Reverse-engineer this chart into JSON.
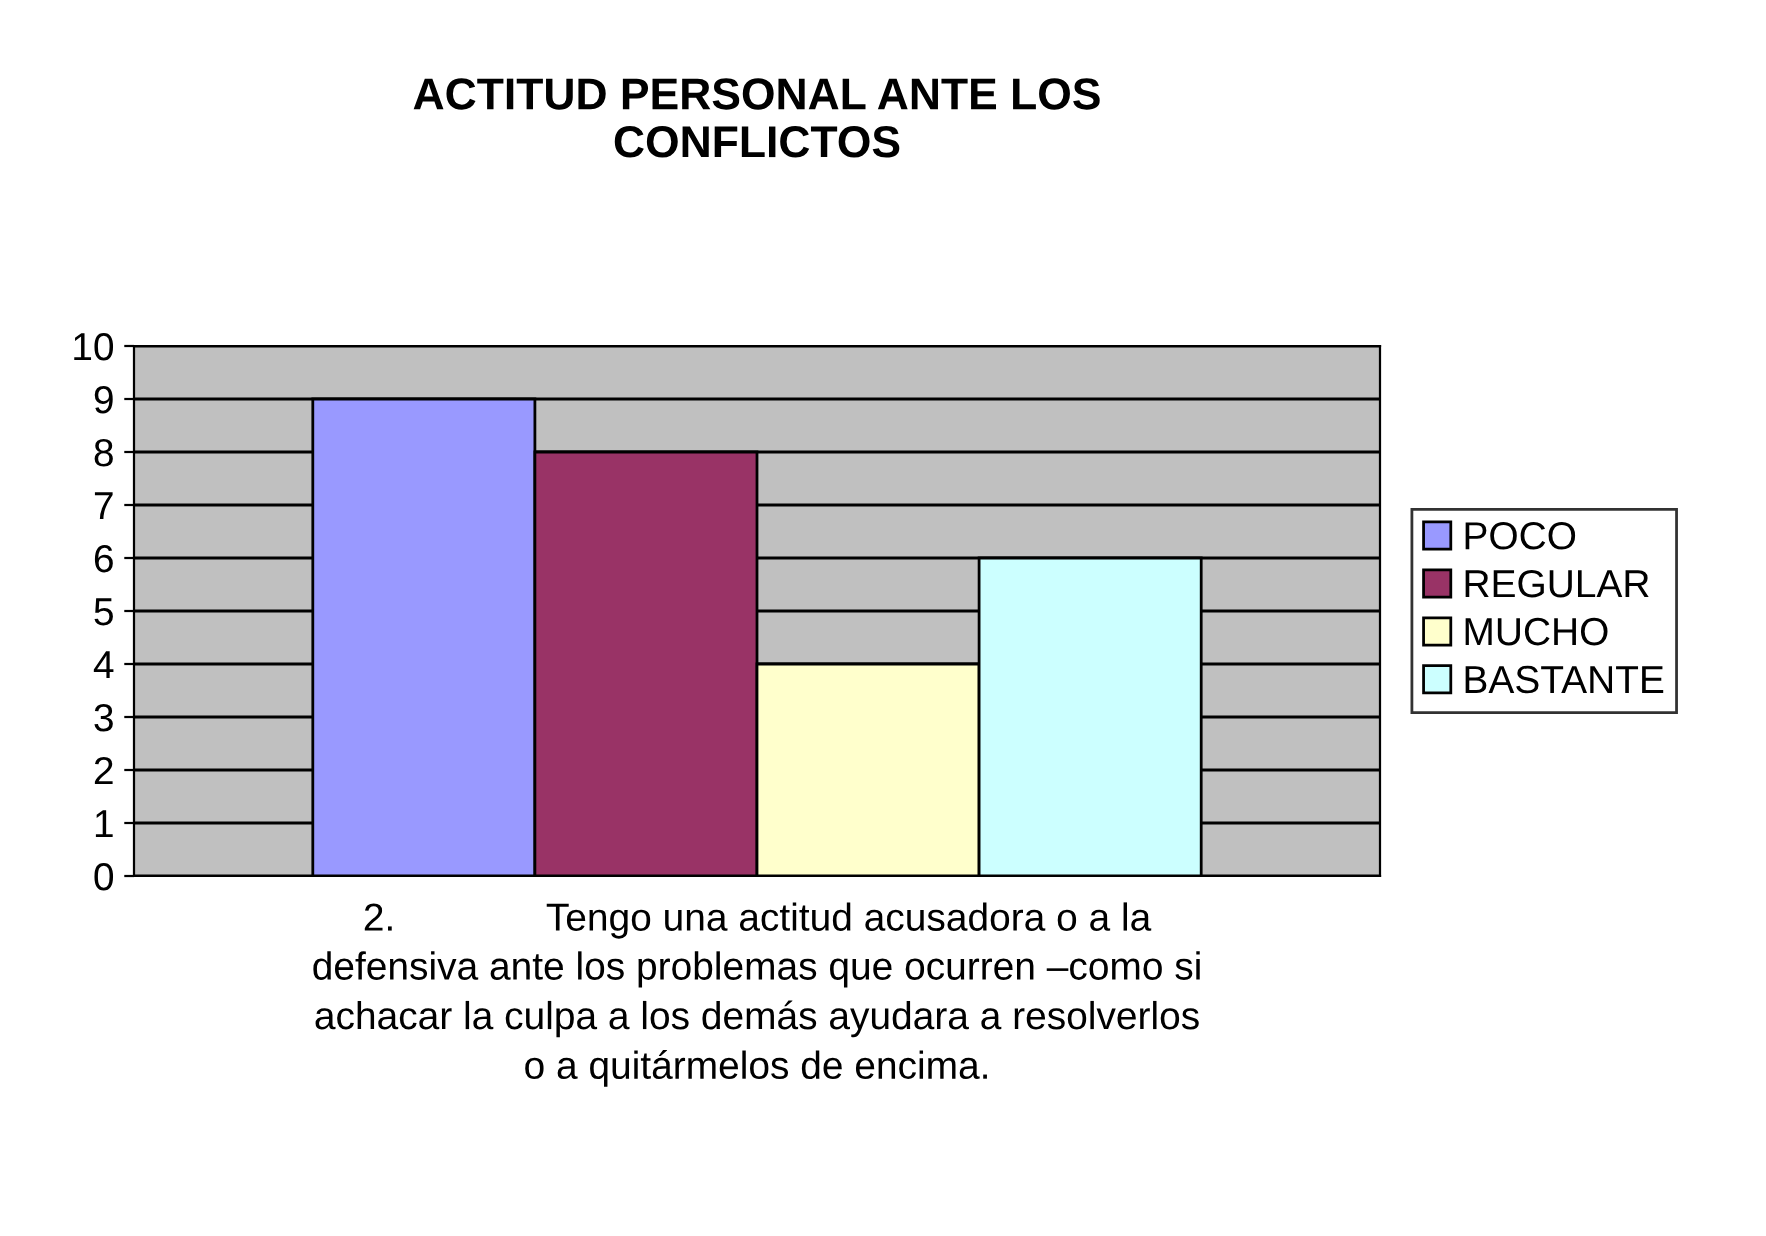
{
  "chart_data": {
    "type": "bar",
    "title": "ACTITUD PERSONAL ANTE LOS\nCONFLICTOS",
    "xlabel": "2.              Tengo una actitud acusadora o a la\ndefensiva ante los problemas que ocurren –como si\nachacar la culpa a los demás ayudara a resolverlos\no a quitármelos de encima.",
    "categories": [
      null
    ],
    "series": [
      {
        "name": "POCO",
        "color": "#9999ff",
        "values": [
          9
        ]
      },
      {
        "name": "REGULAR",
        "color": "#993366",
        "values": [
          8
        ]
      },
      {
        "name": "MUCHO",
        "color": "#ffffcc",
        "values": [
          4
        ]
      },
      {
        "name": "BASTANTE",
        "color": "#ccffff",
        "values": [
          6
        ]
      }
    ],
    "ylim": [
      0,
      10
    ],
    "yticks": [
      0,
      1,
      2,
      3,
      4,
      5,
      6,
      7,
      8,
      9,
      10
    ],
    "grid": "y",
    "legend": "right"
  }
}
